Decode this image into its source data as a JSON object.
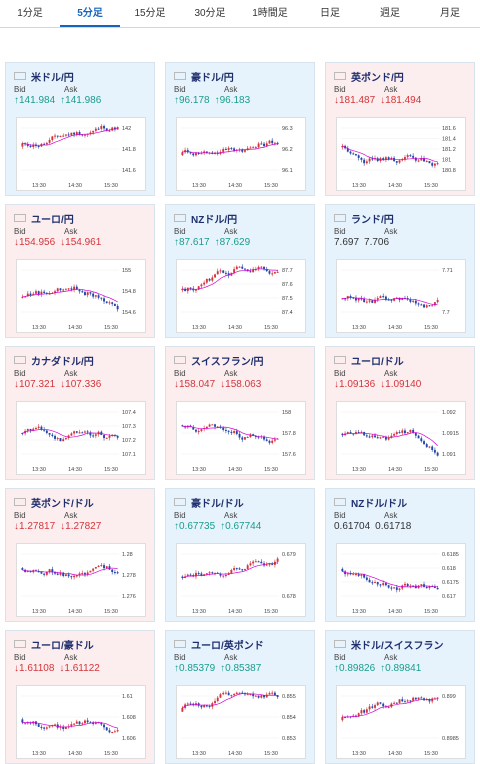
{
  "tabs": [
    {
      "label": "1分足",
      "active": false
    },
    {
      "label": "5分足",
      "active": true
    },
    {
      "label": "15分足",
      "active": false
    },
    {
      "label": "30分足",
      "active": false
    },
    {
      "label": "1時間足",
      "active": false
    },
    {
      "label": "日足",
      "active": false
    },
    {
      "label": "週足",
      "active": false
    },
    {
      "label": "月足",
      "active": false
    }
  ],
  "labels": {
    "bid": "Bid",
    "ask": "Ask"
  },
  "colors": {
    "up": "#1a9c8c",
    "down": "#d3353b",
    "blue_card": "#e7f3fc",
    "pink_card": "#fceeee",
    "title": "#1f2f6e",
    "ma": "#d400d4"
  },
  "cards": [
    {
      "pair": "米ドル/円",
      "flag": "us-flag",
      "bg": "blue",
      "dir": "up",
      "bid": "141.984",
      "ask": "141.986",
      "ticks": [
        "142",
        "141.8",
        "141.6"
      ],
      "times": [
        "13:30",
        "14:30",
        "15:30"
      ]
    },
    {
      "pair": "豪ドル/円",
      "flag": "au-flag",
      "bg": "blue",
      "dir": "up",
      "bid": "96.178",
      "ask": "96.183",
      "ticks": [
        "96.3",
        "96.2",
        "96.1"
      ],
      "times": [
        "13:30",
        "14:30",
        "15:30"
      ]
    },
    {
      "pair": "英ポンド/円",
      "flag": "uk-flag",
      "bg": "pink",
      "dir": "down",
      "bid": "181.487",
      "ask": "181.494",
      "ticks": [
        "181.6",
        "181.4",
        "181.2",
        "181",
        "180.8"
      ],
      "times": [
        "13:30",
        "14:30",
        "15:30"
      ]
    },
    {
      "pair": "ユーロ/円",
      "flag": "eu-flag",
      "bg": "pink",
      "dir": "down",
      "bid": "154.956",
      "ask": "154.961",
      "ticks": [
        "155",
        "154.8",
        "154.6"
      ],
      "times": [
        "13:30",
        "14:30",
        "15:30"
      ]
    },
    {
      "pair": "NZドル/円",
      "flag": "nz-flag",
      "bg": "blue",
      "dir": "up",
      "bid": "87.617",
      "ask": "87.629",
      "ticks": [
        "87.7",
        "87.6",
        "87.5",
        "87.4"
      ],
      "times": [
        "13:30",
        "14:30",
        "15:30"
      ]
    },
    {
      "pair": "ランド/円",
      "flag": "za-flag",
      "bg": "blue",
      "dir": "none",
      "bid": "7.697",
      "ask": "7.706",
      "ticks": [
        "7.71",
        "7.7"
      ],
      "times": [
        "13:30",
        "14:30",
        "15:30"
      ]
    },
    {
      "pair": "カナダドル/円",
      "flag": "ca-flag",
      "bg": "pink",
      "dir": "down",
      "bid": "107.321",
      "ask": "107.336",
      "ticks": [
        "107.4",
        "107.3",
        "107.2",
        "107.1"
      ],
      "times": [
        "13:30",
        "14:30",
        "15:30"
      ]
    },
    {
      "pair": "スイスフラン/円",
      "flag": "ch-flag",
      "bg": "pink",
      "dir": "down",
      "bid": "158.047",
      "ask": "158.063",
      "ticks": [
        "158",
        "157.8",
        "157.6"
      ],
      "times": [
        "13:30",
        "14:30",
        "15:30"
      ]
    },
    {
      "pair": "ユーロ/ドル",
      "flag": "eu-flag",
      "bg": "pink",
      "dir": "down",
      "bid": "1.09136",
      "ask": "1.09140",
      "ticks": [
        "1.092",
        "1.0915",
        "1.091"
      ],
      "times": [
        "13:30",
        "14:30",
        "15:30"
      ]
    },
    {
      "pair": "英ポンド/ドル",
      "flag": "uk-flag",
      "bg": "pink",
      "dir": "down",
      "bid": "1.27817",
      "ask": "1.27827",
      "ticks": [
        "1.28",
        "1.278",
        "1.276"
      ],
      "times": [
        "13:30",
        "14:30",
        "15:30"
      ]
    },
    {
      "pair": "豪ドル/ドル",
      "flag": "au-flag",
      "bg": "blue",
      "dir": "up",
      "bid": "0.67735",
      "ask": "0.67744",
      "ticks": [
        "0.679",
        "0.678"
      ],
      "times": [
        "13:30",
        "14:30",
        "15:30"
      ]
    },
    {
      "pair": "NZドル/ドル",
      "flag": "nz-flag",
      "bg": "blue",
      "dir": "none",
      "bid": "0.61704",
      "ask": "0.61718",
      "ticks": [
        "0.6185",
        "0.618",
        "0.6175",
        "0.617"
      ],
      "times": [
        "13:30",
        "14:30",
        "15:30"
      ]
    },
    {
      "pair": "ユーロ/豪ドル",
      "flag": "eu-flag",
      "bg": "pink",
      "dir": "down",
      "bid": "1.61108",
      "ask": "1.61122",
      "ticks": [
        "1.61",
        "1.608",
        "1.606"
      ],
      "times": [
        "13:30",
        "14:30",
        "15:30"
      ]
    },
    {
      "pair": "ユーロ/英ポンド",
      "flag": "eu-flag",
      "bg": "blue",
      "dir": "up",
      "bid": "0.85379",
      "ask": "0.85387",
      "ticks": [
        "0.855",
        "0.854",
        "0.853"
      ],
      "times": [
        "13:30",
        "14:30",
        "15:30"
      ]
    },
    {
      "pair": "米ドル/スイスフラン",
      "flag": "us-flag",
      "bg": "blue",
      "dir": "up",
      "bid": "0.89826",
      "ask": "0.89841",
      "ticks": [
        "0.899",
        "0.8985"
      ],
      "times": [
        "13:30",
        "14:30",
        "15:30"
      ]
    }
  ]
}
